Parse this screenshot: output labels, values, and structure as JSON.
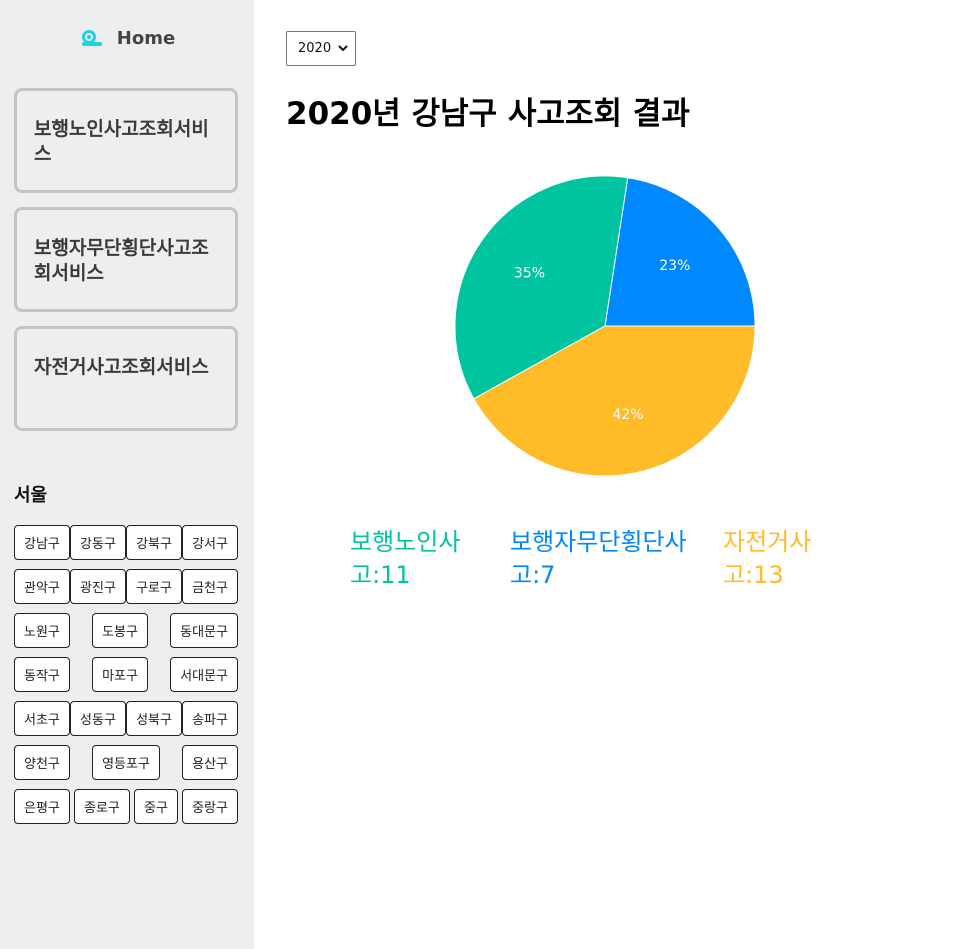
{
  "sidebar": {
    "home_label": "Home",
    "home_icon": "snail-icon",
    "services": [
      {
        "label": "보행노인사고조회서비스"
      },
      {
        "label": "보행자무단횡단사고조회서비스"
      },
      {
        "label": "자전거사고조회서비스"
      }
    ],
    "region_title": "서울",
    "districts": [
      "강남구",
      "강동구",
      "강북구",
      "강서구",
      "관악구",
      "광진구",
      "구로구",
      "금천구",
      "노원구",
      "도봉구",
      "동대문구",
      "동작구",
      "마포구",
      "서대문구",
      "서초구",
      "성동구",
      "성북구",
      "송파구",
      "양천구",
      "영등포구",
      "용산구",
      "은평구",
      "종로구",
      "중구",
      "중랑구"
    ]
  },
  "main": {
    "year_select": {
      "value": "2020"
    },
    "title": "2020년 강남구 사고조회 결과"
  },
  "chart_data": {
    "type": "pie",
    "title": "",
    "slices": [
      {
        "name": "보행노인사고",
        "value": 11,
        "percent_label": "35%",
        "color": "#00c49f"
      },
      {
        "name": "보행자무단횡단사고",
        "value": 7,
        "percent_label": "23%",
        "color": "#0088fe"
      },
      {
        "name": "자전거사고",
        "value": 13,
        "percent_label": "42%",
        "color": "#ffbb28"
      }
    ],
    "legend": [
      {
        "text": "보행노인사고:11",
        "color": "#00c49f"
      },
      {
        "text": "보행자무단횡단사고:7",
        "color": "#0088fe"
      },
      {
        "text": "자전거사고:13",
        "color": "#ffbb28"
      }
    ]
  }
}
